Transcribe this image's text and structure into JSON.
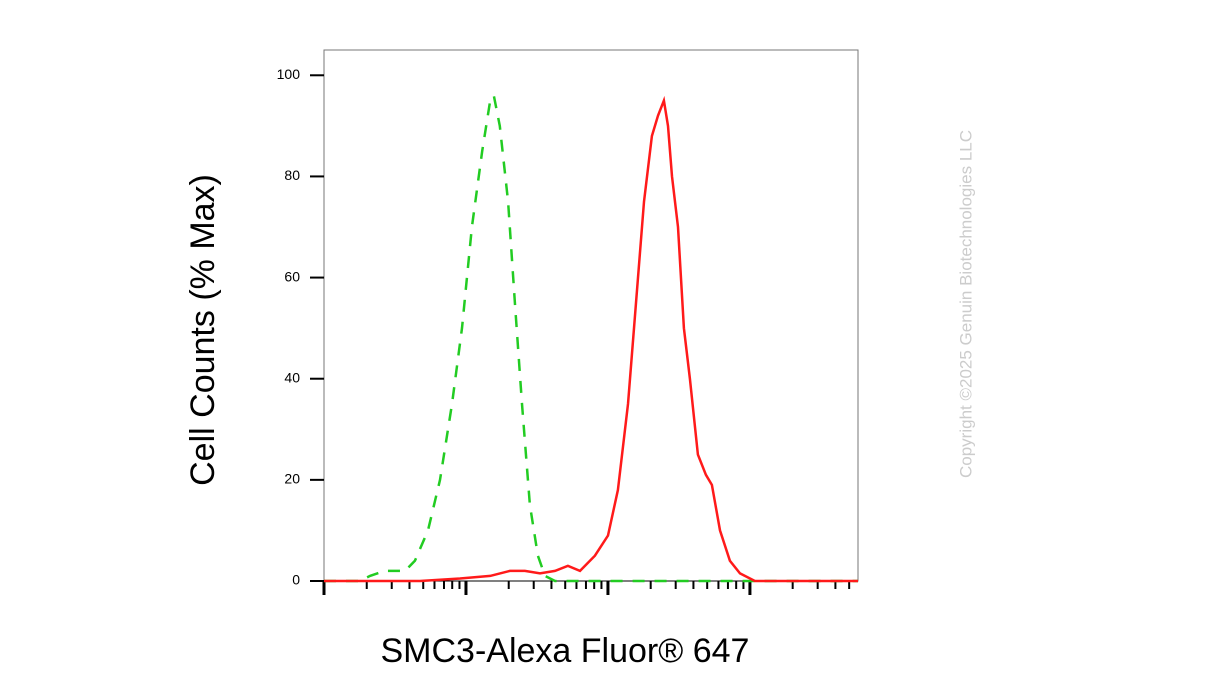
{
  "chart_data": {
    "type": "line",
    "xlabel": "SMC3-Alexa Fluor® 647",
    "ylabel": "Cell Counts (% Max)",
    "watermark": "Copyright ©2025 Genuin Biotechnologies LLC",
    "xscale": "log",
    "xlim": [
      10,
      57700
    ],
    "ylim": [
      0,
      105
    ],
    "yticks": [
      0,
      20,
      40,
      60,
      80,
      100
    ],
    "xticks": [
      10,
      20,
      30,
      40,
      50,
      60,
      70,
      80,
      90,
      100,
      200,
      300,
      400,
      500,
      600,
      700,
      800,
      900,
      1000,
      2000,
      3000,
      4000,
      5000,
      6000,
      7000,
      8000,
      9000,
      10000,
      20000,
      30000,
      40000,
      50000
    ],
    "series": [
      {
        "color": "#22cc22",
        "line_style": "dashed",
        "x": [
          10,
          17.9,
          21.1,
          26.9,
          37.2,
          43.7,
          54,
          65.6,
          79.7,
          93.8,
          110,
          130,
          148,
          157,
          173,
          198,
          221,
          248,
          282,
          321,
          360,
          424,
          57700
        ],
        "values": [
          0,
          0,
          1,
          2,
          2,
          4,
          10,
          20,
          35,
          50,
          70,
          85,
          95,
          96,
          90,
          75,
          55,
          35,
          15,
          5,
          1,
          0,
          0
        ]
      },
      {
        "color": "#ff1a1a",
        "line_style": "solid",
        "x": [
          10,
          47.4,
          90.7,
          148,
          204,
          260,
          332,
          424,
          522,
          636,
          809,
          1000,
          1176,
          1384,
          1575,
          1793,
          2041,
          2250,
          2478,
          2647,
          2825,
          3113,
          3428,
          3777,
          4301,
          4898,
          5399,
          6150,
          7230,
          8510,
          10840,
          57700
        ],
        "values": [
          0,
          0,
          0.5,
          1,
          2,
          2,
          1.5,
          2,
          3,
          2,
          5,
          9,
          18,
          35,
          55,
          75,
          88,
          92,
          95,
          90,
          80,
          70,
          50,
          40,
          25,
          21,
          19,
          10,
          4,
          1.5,
          0,
          0
        ]
      }
    ]
  }
}
